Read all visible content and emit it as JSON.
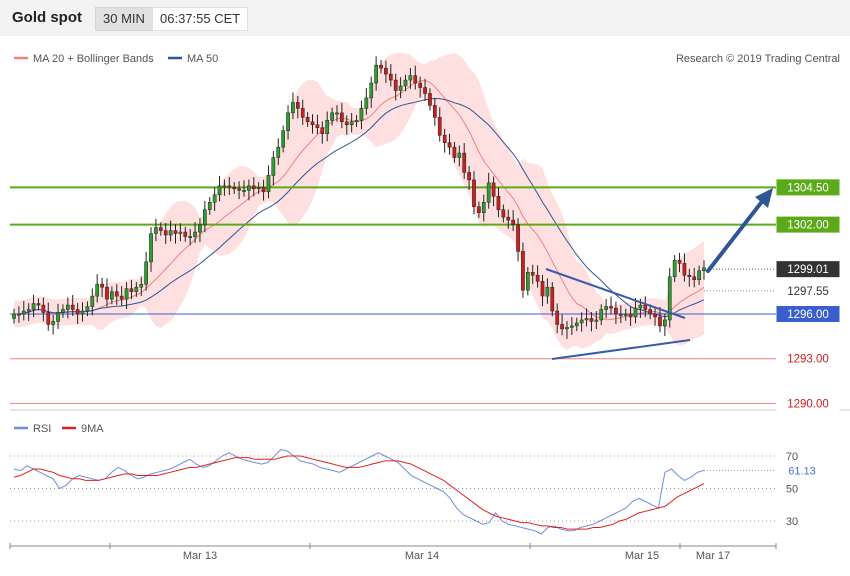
{
  "header": {
    "title": "Gold spot",
    "timeframe": "30 MIN",
    "time": "06:37:55 CET"
  },
  "legend_main": [
    {
      "label": "MA 20 + Bollinger Bands",
      "color": "#f08080"
    },
    {
      "label": "MA 50",
      "color": "#2f5597"
    }
  ],
  "credit": "Research © 2019 Trading Central",
  "legend_rsi": [
    {
      "label": "RSI",
      "color": "#6e8fd8"
    },
    {
      "label": "9MA",
      "color": "#e02020"
    }
  ],
  "colors": {
    "up": "#2e9e2e",
    "down": "#cc1f1f",
    "resistance": "#5aaa1a",
    "support": "#3a5fcd",
    "pivot": "#f08080",
    "current": "#333333"
  },
  "chart_data": [
    {
      "type": "candlestick",
      "title": "Gold spot",
      "y_range": [
        1289.5,
        1310.0
      ],
      "x_tick_labels": [
        "Mar 13",
        "Mar 14",
        "Mar 15",
        "Mar 17"
      ],
      "horizontal_levels": [
        {
          "label": "1304.50",
          "value": 1304.5,
          "kind": "resistance"
        },
        {
          "label": "1302.00",
          "value": 1302.0,
          "kind": "resistance"
        },
        {
          "label": "1299.01",
          "value": 1299.01,
          "kind": "current"
        },
        {
          "label": "1297.55",
          "value": 1297.55,
          "kind": "pivot"
        },
        {
          "label": "1296.00",
          "value": 1296.0,
          "kind": "support"
        },
        {
          "label": "1293.00",
          "value": 1293.0,
          "kind": "lower"
        },
        {
          "label": "1290.00",
          "value": 1290.0,
          "kind": "lower"
        }
      ],
      "close_series": [
        1296.0,
        1296.0,
        1296.2,
        1296.3,
        1296.7,
        1296.6,
        1296.1,
        1295.3,
        1295.5,
        1296.1,
        1296.3,
        1296.6,
        1296.3,
        1296.0,
        1296.2,
        1296.5,
        1297.2,
        1298.0,
        1297.8,
        1297.0,
        1297.5,
        1297.2,
        1297.0,
        1297.7,
        1297.5,
        1297.8,
        1298.0,
        1299.5,
        1301.4,
        1301.8,
        1301.6,
        1301.3,
        1301.6,
        1301.4,
        1301.5,
        1301.2,
        1301.2,
        1301.5,
        1302.0,
        1303.0,
        1303.5,
        1304.0,
        1304.6,
        1304.6,
        1304.5,
        1304.4,
        1304.3,
        1304.3,
        1304.6,
        1304.4,
        1304.5,
        1304.2,
        1305.3,
        1306.5,
        1307.2,
        1308.3,
        1309.5,
        1310.2,
        1309.8,
        1309.2,
        1308.9,
        1308.7,
        1308.5,
        1308.1,
        1309.0,
        1309.5,
        1309.5,
        1308.9,
        1308.7,
        1308.9,
        1309.0,
        1309.8,
        1310.5,
        1311.5,
        1312.7,
        1312.5,
        1312.1,
        1311.7,
        1311.0,
        1311.3,
        1311.7,
        1312.0,
        1311.5,
        1311.2,
        1310.8,
        1310.0,
        1309.2,
        1308.0,
        1307.5,
        1307.2,
        1306.5,
        1306.8,
        1305.5,
        1305.0,
        1303.2,
        1302.8,
        1303.5,
        1304.8,
        1303.9,
        1303.0,
        1302.5,
        1302.3,
        1302.0,
        1300.2,
        1297.6,
        1298.8,
        1298.6,
        1298.2,
        1297.2,
        1297.8,
        1296.2,
        1295.3,
        1295.0,
        1295.1,
        1295.2,
        1295.4,
        1295.6,
        1295.7,
        1295.5,
        1295.6,
        1296.3,
        1296.5,
        1296.4,
        1296.0,
        1295.9,
        1296.0,
        1295.8,
        1296.4,
        1296.6,
        1296.3,
        1296.0,
        1295.8,
        1295.2,
        1295.6,
        1298.5,
        1299.6,
        1299.4,
        1298.6,
        1298.5,
        1298.3,
        1298.9,
        1299.1
      ]
    },
    {
      "type": "line",
      "title": "RSI",
      "y_ticks": [
        30,
        50,
        70
      ],
      "y_range": [
        15,
        80
      ],
      "current_value": "61.13",
      "series": [
        {
          "name": "RSI",
          "values": [
            62,
            61,
            64,
            62,
            60,
            58,
            56,
            50,
            52,
            56,
            58,
            57,
            56,
            55,
            56,
            60,
            63,
            61,
            58,
            56,
            57,
            59,
            60,
            61,
            62,
            64,
            66,
            68,
            65,
            63,
            64,
            67,
            70,
            72,
            70,
            68,
            67,
            66,
            65,
            66,
            70,
            74,
            73,
            70,
            67,
            66,
            65,
            63,
            62,
            61,
            60,
            62,
            64,
            66,
            68,
            70,
            72,
            70,
            68,
            66,
            62,
            58,
            56,
            54,
            52,
            50,
            48,
            44,
            38,
            34,
            32,
            30,
            28,
            29,
            35,
            30,
            28,
            27,
            26,
            25,
            24,
            22,
            26,
            27,
            25,
            24,
            24,
            26,
            27,
            28,
            30,
            32,
            34,
            36,
            38,
            42,
            44,
            42,
            40,
            38,
            60,
            62,
            58,
            55,
            57,
            60,
            61.13
          ]
        },
        {
          "name": "9MA",
          "values": [
            57,
            58,
            60,
            62,
            62,
            61,
            60,
            58,
            57,
            56,
            56,
            55,
            55,
            55,
            56,
            57,
            58,
            59,
            59,
            58,
            58,
            58,
            58,
            59,
            60,
            61,
            62,
            63,
            63,
            64,
            65,
            66,
            67,
            68,
            69,
            69,
            69,
            68,
            68,
            68,
            68,
            69,
            70,
            70,
            70,
            69,
            68,
            67,
            66,
            65,
            64,
            63,
            63,
            63,
            64,
            65,
            66,
            67,
            67,
            67,
            66,
            65,
            63,
            61,
            59,
            57,
            55,
            52,
            49,
            46,
            43,
            40,
            37,
            35,
            33,
            32,
            31,
            30,
            29,
            29,
            28,
            27,
            27,
            26,
            26,
            25,
            25,
            25,
            25,
            26,
            26,
            27,
            28,
            30,
            31,
            33,
            35,
            36,
            37,
            38,
            39,
            42,
            45,
            47,
            49,
            51,
            53
          ]
        }
      ]
    }
  ]
}
